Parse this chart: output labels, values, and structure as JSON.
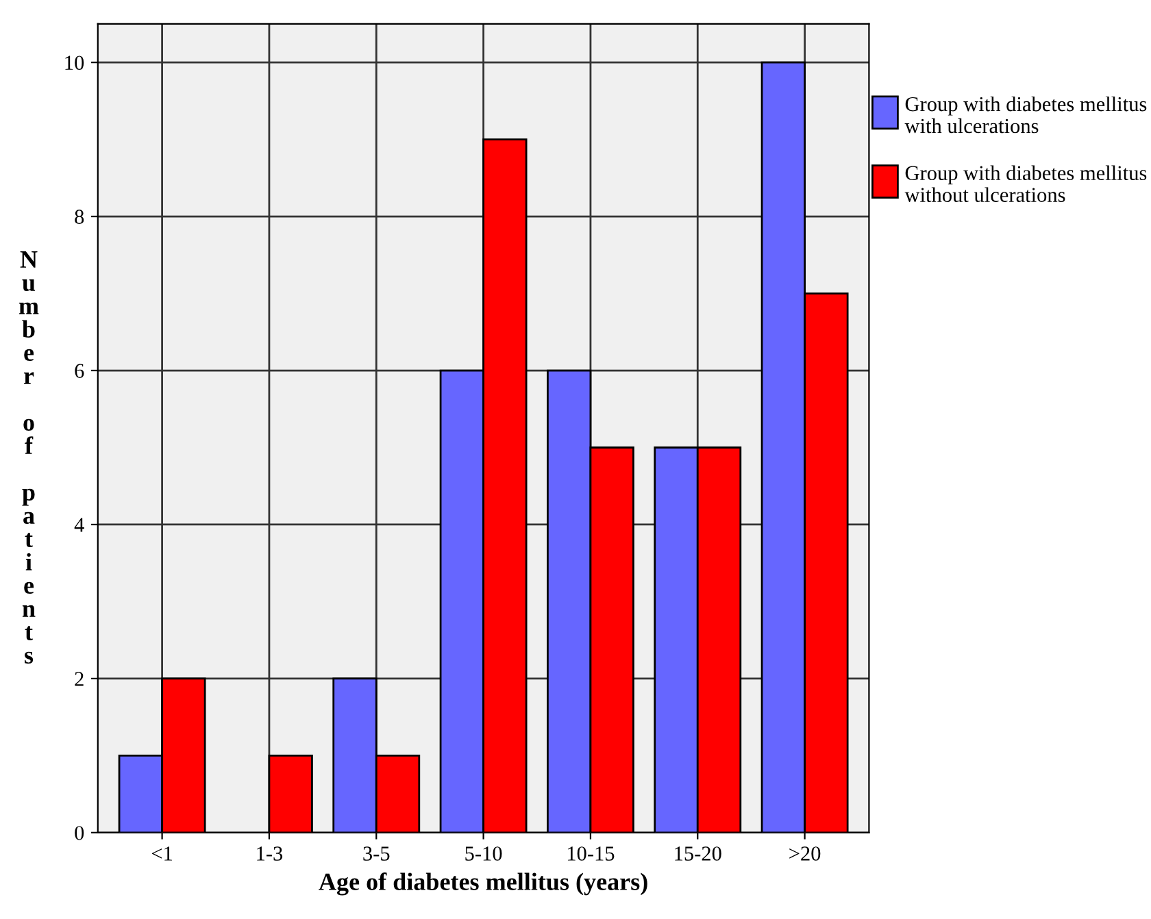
{
  "chart_data": {
    "type": "bar",
    "xlabel": "Age of diabetes mellitus (years)",
    "ylabel": "Number of patients",
    "categories": [
      "<1",
      "1-3",
      "3-5",
      "5-10",
      "10-15",
      "15-20",
      ">20"
    ],
    "series": [
      {
        "name": "Group with diabetes mellitus with ulcerations",
        "color": "#6666ff",
        "values": [
          1,
          0,
          2,
          6,
          6,
          5,
          10
        ]
      },
      {
        "name": "Group with diabetes mellitus without ulcerations",
        "color": "#ff0000",
        "values": [
          2,
          1,
          1,
          9,
          5,
          5,
          7
        ]
      }
    ],
    "ylim": [
      0,
      10.5
    ],
    "yticks": [
      0,
      2,
      4,
      6,
      8,
      10
    ],
    "grid": true,
    "legend": "top right"
  }
}
